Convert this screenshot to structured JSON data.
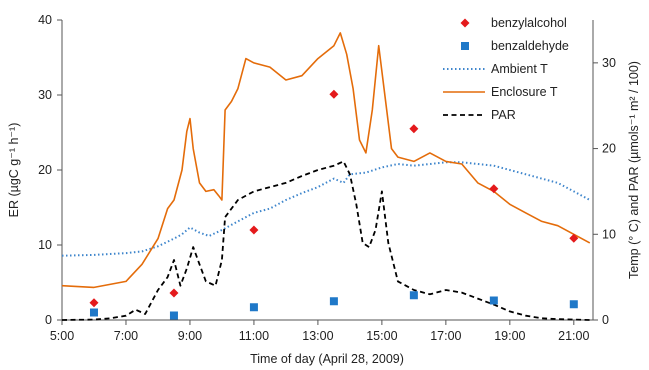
{
  "chart_data": {
    "type": "line",
    "xlabel": "Time of day (April 28, 2009)",
    "ylabel": "ER (µgC g⁻¹ h⁻¹)",
    "y2label": "Temp (° C) and PAR (µmols⁻¹ m² / 100)",
    "xlim": [
      5,
      21.6
    ],
    "ylim": [
      0,
      40
    ],
    "y2lim": [
      0,
      35
    ],
    "x_ticks": [
      "5:00",
      "7:00",
      "9:00",
      "11:00",
      "13:00",
      "15:00",
      "17:00",
      "19:00",
      "21:00"
    ],
    "y_ticks": [
      "0",
      "10",
      "20",
      "30",
      "40"
    ],
    "y2_ticks": [
      "0",
      "10",
      "20",
      "30"
    ],
    "legend_position": "top-right",
    "legend": [
      "benzylalcohol",
      "benzaldehyde",
      "Ambient T",
      "Enclosure T",
      "PAR"
    ],
    "colors": {
      "benzylalcohol": "#e41a1c",
      "benzaldehyde": "#1f78c8",
      "ambient_t": "#3f86cc",
      "enclosure_t": "#e46c0a",
      "par": "#000000"
    },
    "series": [
      {
        "name": "benzylalcohol",
        "kind": "scatter",
        "axis": "left",
        "x": [
          6.0,
          8.5,
          11.0,
          13.5,
          16.0,
          18.5,
          21.0
        ],
        "y": [
          2.3,
          3.6,
          12.0,
          30.1,
          25.5,
          17.5,
          10.9
        ]
      },
      {
        "name": "benzaldehyde",
        "kind": "scatter",
        "axis": "left",
        "x": [
          6.0,
          8.5,
          11.0,
          13.5,
          16.0,
          18.5,
          21.0
        ],
        "y": [
          1.0,
          0.6,
          1.7,
          2.5,
          3.3,
          2.6,
          2.1
        ]
      },
      {
        "name": "Ambient T",
        "kind": "line",
        "axis": "right",
        "x": [
          5.0,
          6.0,
          7.0,
          7.5,
          8.0,
          8.5,
          8.75,
          9.0,
          9.3,
          9.6,
          10.0,
          10.5,
          11.0,
          11.5,
          12.0,
          12.5,
          13.0,
          13.5,
          13.8,
          14.0,
          14.5,
          15.0,
          15.5,
          16.0,
          16.5,
          17.0,
          17.5,
          18.0,
          18.5,
          19.0,
          19.5,
          20.0,
          20.5,
          21.0,
          21.5
        ],
        "y": [
          7.5,
          7.6,
          7.8,
          8.0,
          8.6,
          9.5,
          10.0,
          10.8,
          10.2,
          9.8,
          10.5,
          11.5,
          12.5,
          13.0,
          14.0,
          14.8,
          15.5,
          16.5,
          16.0,
          17.0,
          17.2,
          17.8,
          18.2,
          18.0,
          18.2,
          18.4,
          18.4,
          18.2,
          18.0,
          17.5,
          17.0,
          16.5,
          16.0,
          15.0,
          14.0
        ]
      },
      {
        "name": "Enclosure T",
        "kind": "line",
        "axis": "right",
        "x": [
          5.0,
          6.0,
          7.0,
          7.5,
          8.0,
          8.3,
          8.5,
          8.75,
          8.9,
          9.0,
          9.1,
          9.3,
          9.5,
          9.75,
          9.9,
          10.0,
          10.1,
          10.3,
          10.5,
          10.75,
          11.0,
          11.5,
          12.0,
          12.5,
          13.0,
          13.5,
          13.7,
          13.9,
          14.1,
          14.3,
          14.5,
          14.7,
          14.9,
          15.1,
          15.3,
          15.5,
          16.0,
          16.5,
          17.0,
          17.5,
          18.0,
          18.5,
          19.0,
          19.5,
          20.0,
          20.5,
          21.0,
          21.5
        ],
        "y": [
          4.0,
          3.8,
          4.5,
          6.5,
          9.5,
          13.0,
          14.0,
          17.5,
          22.0,
          23.5,
          20.0,
          16.0,
          15.0,
          15.2,
          14.5,
          14.0,
          24.5,
          25.5,
          27.0,
          30.5,
          30.0,
          29.5,
          28.0,
          28.5,
          30.5,
          32.0,
          33.5,
          31.0,
          27.0,
          21.0,
          19.5,
          24.5,
          32.0,
          26.0,
          20.0,
          19.0,
          18.5,
          19.5,
          18.5,
          18.2,
          16.0,
          15.0,
          13.5,
          12.5,
          11.5,
          11.0,
          10.0,
          9.0
        ]
      },
      {
        "name": "PAR",
        "kind": "line",
        "dashed": true,
        "axis": "right",
        "x": [
          5.0,
          6.0,
          6.5,
          7.0,
          7.3,
          7.6,
          8.0,
          8.3,
          8.5,
          8.7,
          8.9,
          9.1,
          9.3,
          9.5,
          9.8,
          10.0,
          10.1,
          10.3,
          10.5,
          11.0,
          11.5,
          12.0,
          12.5,
          13.0,
          13.5,
          13.8,
          14.0,
          14.2,
          14.4,
          14.6,
          14.8,
          15.0,
          15.2,
          15.5,
          16.0,
          16.5,
          17.0,
          17.5,
          18.0,
          18.5,
          19.0,
          19.5,
          20.0,
          20.5,
          21.0,
          21.5
        ],
        "y": [
          0.0,
          0.05,
          0.2,
          0.5,
          1.2,
          0.7,
          3.5,
          5.0,
          7.0,
          4.0,
          6.0,
          8.5,
          6.5,
          4.5,
          4.0,
          7.0,
          12.0,
          13.0,
          14.0,
          15.0,
          15.5,
          16.0,
          16.8,
          17.5,
          18.0,
          18.5,
          17.0,
          13.5,
          9.0,
          8.5,
          10.5,
          15.0,
          9.0,
          4.5,
          3.5,
          3.0,
          3.5,
          3.2,
          2.5,
          1.8,
          1.0,
          0.5,
          0.2,
          0.1,
          0.05,
          0.0
        ]
      }
    ]
  }
}
